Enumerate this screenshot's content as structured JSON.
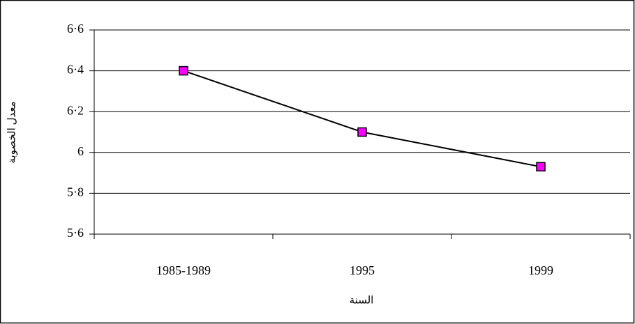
{
  "chart_data": {
    "type": "line",
    "categories": [
      "1985-1989",
      "1995",
      "1999"
    ],
    "series": [
      {
        "name": "معدل الخصوبة",
        "color": "#ff00ff",
        "values": [
          6.4,
          6.1,
          5.93
        ]
      }
    ],
    "xlabel": "السنة",
    "ylabel": "معدل الخصوبة",
    "ylim": [
      5.6,
      6.6
    ],
    "yticks": [
      {
        "value": 5.6,
        "label": "5·6"
      },
      {
        "value": 5.8,
        "label": "5·8"
      },
      6,
      {
        "value": 6.2,
        "label": "6·2"
      },
      {
        "value": 6.4,
        "label": "6·4"
      },
      {
        "value": 6.6,
        "label": "6·6"
      }
    ],
    "grid": true
  }
}
